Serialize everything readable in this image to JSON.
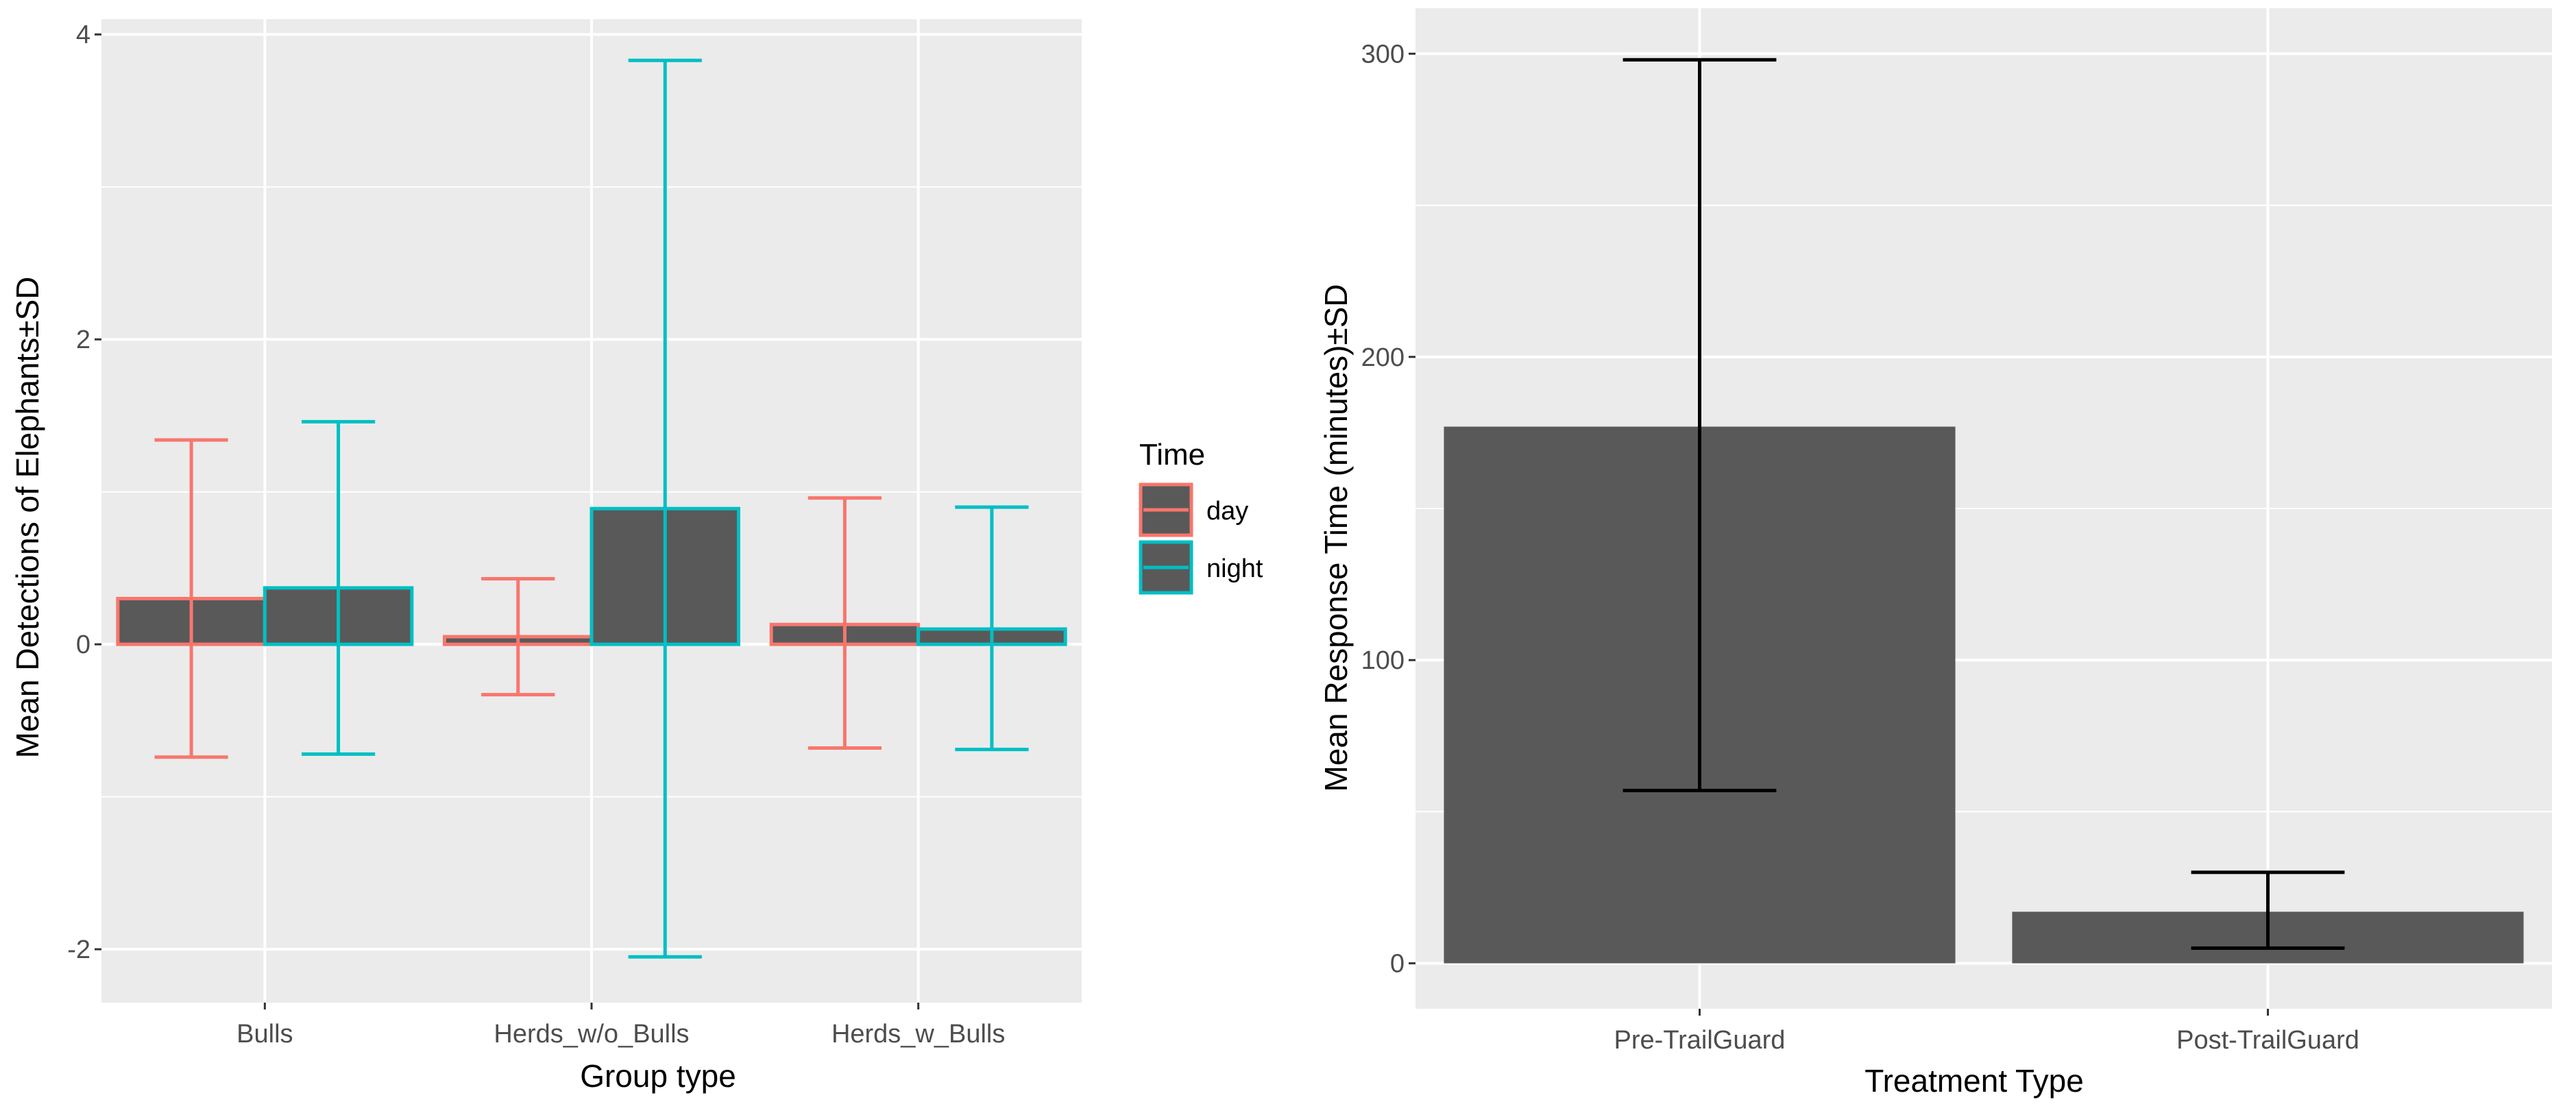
{
  "chart_data": [
    {
      "type": "bar",
      "title": "",
      "xlabel": "Group type",
      "ylabel": "Mean Detections of Elephants±SD",
      "categories": [
        "Bulls",
        "Herds_w/o_Bulls",
        "Herds_w_Bulls"
      ],
      "ylim": [
        -2.35,
        4.1
      ],
      "yticks": [
        -2,
        0,
        2,
        4
      ],
      "yticklabels": [
        "-2",
        "0",
        "2",
        "4"
      ],
      "grid": true,
      "legend": {
        "title": "Time",
        "placement": "right"
      },
      "series": [
        {
          "name": "day",
          "color": "#F8766D",
          "values": [
            0.3,
            0.05,
            0.13
          ],
          "error_low": [
            -0.74,
            -0.33,
            -0.68
          ],
          "error_high": [
            1.34,
            0.43,
            0.96
          ]
        },
        {
          "name": "night",
          "color": "#00BFC4",
          "values": [
            0.37,
            0.89,
            0.1
          ],
          "error_low": [
            -0.72,
            -2.05,
            -0.69
          ],
          "error_high": [
            1.46,
            3.83,
            0.9
          ]
        }
      ]
    },
    {
      "type": "bar",
      "title": "",
      "xlabel": "Treatment Type",
      "ylabel": "Mean Response Time (minutes)±SD",
      "categories": [
        "Pre-TrailGuard",
        "Post-TrailGuard"
      ],
      "ylim": [
        -15,
        315
      ],
      "yticks": [
        0,
        100,
        200,
        300
      ],
      "yticklabels": [
        "0",
        "100",
        "200",
        "300"
      ],
      "grid": true,
      "series": [
        {
          "color": "#595959",
          "values": [
            177,
            17
          ],
          "error_low": [
            57,
            5
          ],
          "error_high": [
            298,
            30
          ]
        }
      ]
    }
  ]
}
